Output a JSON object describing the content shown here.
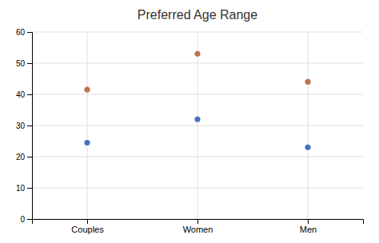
{
  "chart_data": {
    "type": "scatter",
    "title": "Preferred Age Range",
    "categories": [
      "Couples",
      "Women",
      "Men"
    ],
    "series": [
      {
        "color": "#4472C4",
        "values": [
          24.5,
          32,
          23
        ]
      },
      {
        "color": "#C0724A",
        "values": [
          41.5,
          53,
          44
        ]
      }
    ],
    "ylim": [
      0,
      60
    ],
    "yticks": [
      0,
      10,
      20,
      30,
      40,
      50,
      60
    ],
    "grid": true,
    "marker": "circle"
  }
}
